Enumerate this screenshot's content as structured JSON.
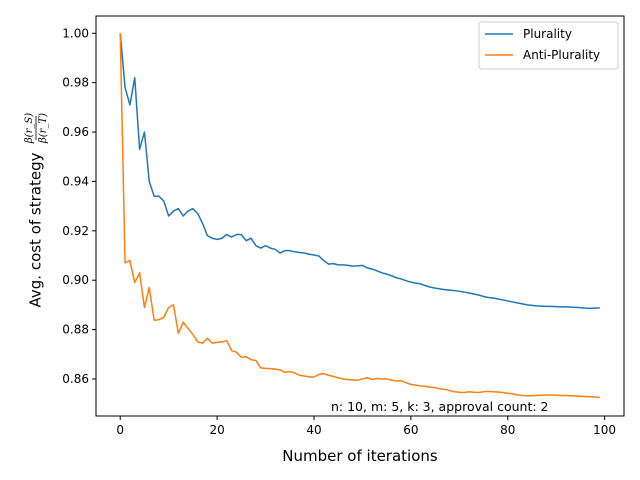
{
  "chart_data": {
    "type": "line",
    "xlabel": "Number of iterations",
    "ylabel": "Avg. cost of strategy",
    "ylabel_fraction": {
      "numerator": "β(r_S)",
      "denominator": "β(r_T)"
    },
    "xlim": [
      -5,
      104
    ],
    "ylim": [
      0.845,
      1.007
    ],
    "xticks": [
      0,
      20,
      40,
      60,
      80,
      100
    ],
    "yticks": [
      0.86,
      0.88,
      0.9,
      0.92,
      0.94,
      0.96,
      0.98,
      1.0
    ],
    "xtick_labels": [
      "0",
      "20",
      "40",
      "60",
      "80",
      "100"
    ],
    "ytick_labels": [
      "0.86",
      "0.88",
      "0.90",
      "0.92",
      "0.94",
      "0.96",
      "0.98",
      "1.00"
    ],
    "grid": false,
    "legend_position": "top-right",
    "annotation": "n: 10, m: 5, k: 3, approval count: 2",
    "series": [
      {
        "name": "Plurality",
        "color": "#1f77b4",
        "values": [
          1.0,
          0.978,
          0.971,
          0.982,
          0.953,
          0.96,
          0.94,
          0.934,
          0.934,
          0.932,
          0.926,
          0.928,
          0.929,
          0.926,
          0.928,
          0.929,
          0.927,
          0.923,
          0.918,
          0.917,
          0.9165,
          0.917,
          0.9185,
          0.9175,
          0.9185,
          0.9185,
          0.916,
          0.917,
          0.914,
          0.913,
          0.914,
          0.913,
          0.9125,
          0.911,
          0.912,
          0.912,
          0.9115,
          0.9112,
          0.911,
          0.9105,
          0.9102,
          0.9098,
          0.908,
          0.9065,
          0.9067,
          0.9062,
          0.9062,
          0.906,
          0.9057,
          0.9058,
          0.906,
          0.905,
          0.9045,
          0.9038,
          0.903,
          0.9025,
          0.9018,
          0.901,
          0.9005,
          0.8998,
          0.8992,
          0.8988,
          0.8985,
          0.8978,
          0.8972,
          0.8968,
          0.8965,
          0.8962,
          0.896,
          0.8958,
          0.8955,
          0.8952,
          0.8948,
          0.8944,
          0.894,
          0.8934,
          0.893,
          0.8928,
          0.8924,
          0.892,
          0.8916,
          0.8912,
          0.8908,
          0.8904,
          0.89,
          0.8898,
          0.8896,
          0.8895,
          0.8894,
          0.8894,
          0.8893,
          0.8892,
          0.8892,
          0.8891,
          0.889,
          0.8889,
          0.8887,
          0.8886,
          0.8887,
          0.8888
        ]
      },
      {
        "name": "Anti-Plurality",
        "color": "#ff7f0e",
        "values": [
          1.0,
          0.907,
          0.908,
          0.899,
          0.903,
          0.889,
          0.897,
          0.8838,
          0.884,
          0.885,
          0.889,
          0.89,
          0.8785,
          0.883,
          0.8805,
          0.878,
          0.875,
          0.8745,
          0.8765,
          0.8745,
          0.8748,
          0.875,
          0.8755,
          0.8715,
          0.8708,
          0.8688,
          0.869,
          0.8678,
          0.8675,
          0.8645,
          0.8643,
          0.8642,
          0.864,
          0.8637,
          0.8627,
          0.863,
          0.8625,
          0.8615,
          0.8612,
          0.8608,
          0.8608,
          0.8618,
          0.8622,
          0.8615,
          0.861,
          0.8605,
          0.86,
          0.8598,
          0.8596,
          0.8595,
          0.86,
          0.8605,
          0.8598,
          0.8602,
          0.86,
          0.8601,
          0.8595,
          0.8592,
          0.8593,
          0.8585,
          0.8578,
          0.8575,
          0.8572,
          0.857,
          0.8567,
          0.8565,
          0.856,
          0.8558,
          0.8553,
          0.8548,
          0.8546,
          0.8545,
          0.8548,
          0.8546,
          0.8545,
          0.8548,
          0.855,
          0.8548,
          0.8547,
          0.8545,
          0.8542,
          0.854,
          0.8535,
          0.8533,
          0.8532,
          0.8532,
          0.8533,
          0.8534,
          0.8535,
          0.8535,
          0.8534,
          0.8533,
          0.8533,
          0.8532,
          0.8531,
          0.853,
          0.8529,
          0.8528,
          0.8527,
          0.8525
        ]
      }
    ]
  }
}
